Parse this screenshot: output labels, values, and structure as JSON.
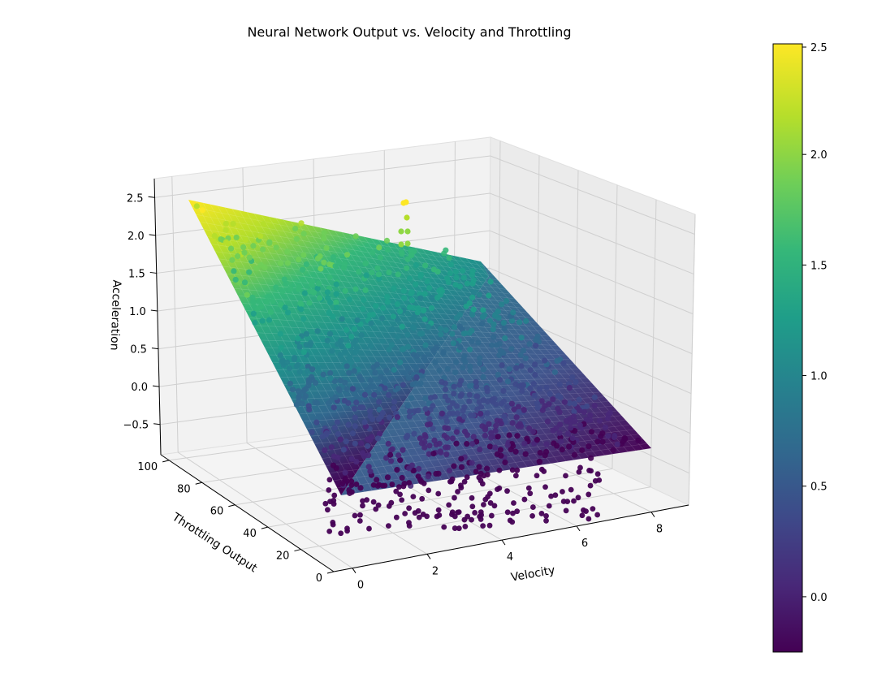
{
  "chart_data": {
    "type": "surface3d_with_scatter",
    "title": "Neural Network Output vs. Velocity and Throttling",
    "xlabel": "Velocity",
    "ylabel": "Throttling Output",
    "zlabel": "Acceleration",
    "x_ticks": [
      "0",
      "2",
      "4",
      "6",
      "8"
    ],
    "y_ticks": [
      "0",
      "20",
      "40",
      "60",
      "80",
      "100"
    ],
    "z_ticks": [
      "−0.5",
      "0.0",
      "0.5",
      "1.0",
      "1.5",
      "2.0",
      "2.5"
    ],
    "xlim": [
      -0.5,
      9.0
    ],
    "ylim": [
      0,
      105
    ],
    "zlim": [
      -0.9,
      2.75
    ],
    "surface_corners": {
      "x0_y100": 2.5,
      "x8_8_y100": 1.4,
      "x0_y0": -0.25,
      "x8_8_y0": -0.3
    },
    "colorbar": {
      "cmap": "viridis",
      "min": -0.25,
      "max": 2.5,
      "ticks": [
        "0.0",
        "0.5",
        "1.0",
        "1.5",
        "2.0",
        "2.5"
      ]
    },
    "colors": {
      "viridis_low": "#440154",
      "viridis_mid": "#21918c",
      "viridis_high": "#fde725"
    }
  }
}
